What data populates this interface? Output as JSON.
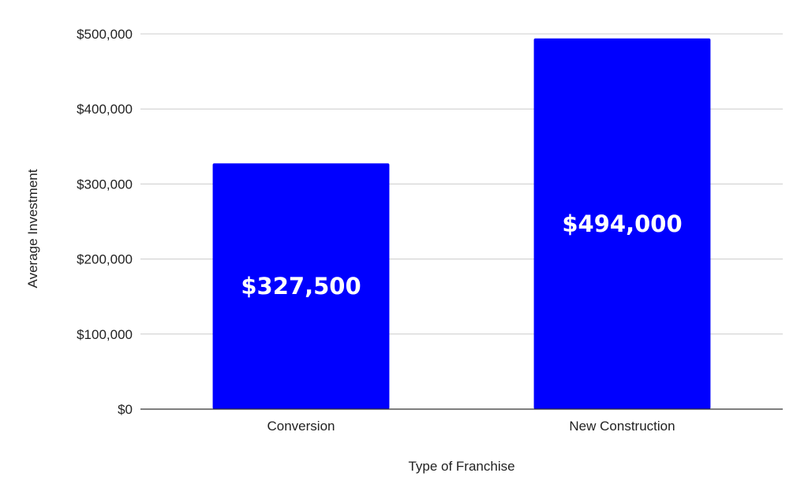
{
  "chart_data": {
    "type": "bar",
    "categories": [
      "Conversion",
      "New Construction"
    ],
    "values": [
      327500,
      494000
    ],
    "data_labels": [
      "$327,500",
      "$494,000"
    ],
    "xlabel": "Type of Franchise",
    "ylabel": "Average Investment",
    "ylim": [
      0,
      500000
    ],
    "yticks": [
      0,
      100000,
      200000,
      300000,
      400000,
      500000
    ],
    "ytick_labels": [
      "$0",
      "$100,000",
      "$200,000",
      "$300,000",
      "$400,000",
      "$500,000"
    ],
    "grid": true,
    "legend": "none",
    "bar_color": "#0000ff",
    "label_color": "#ffffff"
  }
}
